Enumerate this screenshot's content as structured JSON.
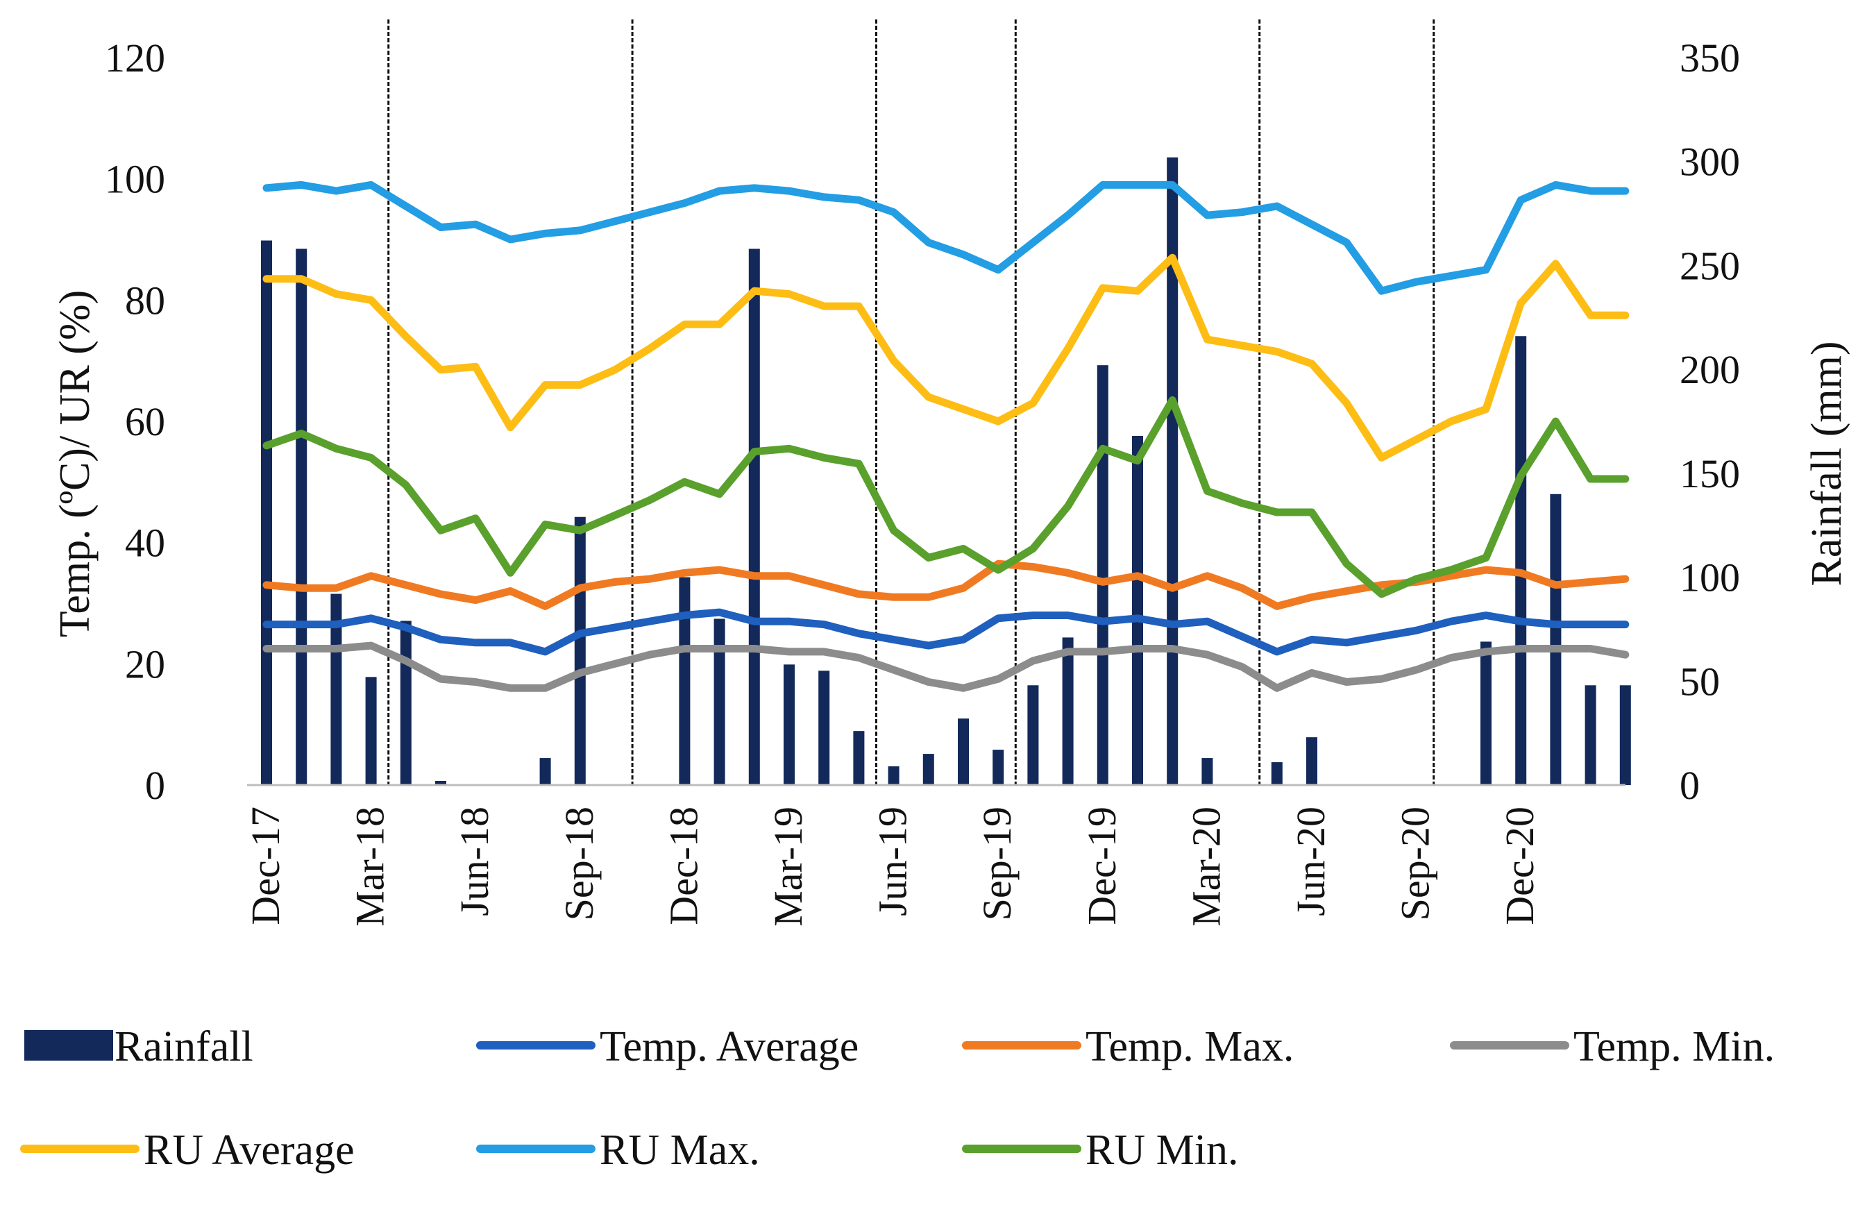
{
  "chart_data": {
    "type": "bar+line",
    "title": "",
    "ylabel_left": "Temp. (ºC)/ UR (%)",
    "ylabel_right": "Rainfall (mm)",
    "ylim_left": [
      0,
      120
    ],
    "ylim_right": [
      0,
      350
    ],
    "yticks_left": [
      "0",
      "20",
      "40",
      "60",
      "80",
      "100",
      "120"
    ],
    "yticks_right": [
      "0",
      "50",
      "100",
      "150",
      "200",
      "250",
      "300",
      "350"
    ],
    "months": [
      "Dec-17",
      "Jan-18",
      "Feb-18",
      "Mar-18",
      "Apr-18",
      "May-18",
      "Jun-18",
      "Jul-18",
      "Aug-18",
      "Sep-18",
      "Oct-18",
      "Nov-18",
      "Dec-18",
      "Jan-19",
      "Feb-19",
      "Mar-19",
      "Apr-19",
      "May-19",
      "Jun-19",
      "Jul-19",
      "Aug-19",
      "Sep-19",
      "Oct-19",
      "Nov-19",
      "Dec-19",
      "Jan-20",
      "Feb-20",
      "Mar-20",
      "Apr-20",
      "May-20",
      "Jun-20",
      "Jul-20",
      "Aug-20",
      "Sep-20",
      "Oct-20",
      "Nov-20",
      "Dec-20",
      "Jan-21",
      "Feb-21",
      "Mar-21"
    ],
    "xtick_labels": [
      "Dec-17",
      "Mar-18",
      "Jun-18",
      "Sep-18",
      "Dec-18",
      "Mar-19",
      "Jun-19",
      "Sep-19",
      "Dec-19",
      "Mar-20",
      "Jun-20",
      "Sep-20",
      "Dec-20"
    ],
    "vertical_dividers_after_month_index": [
      3.5,
      10.5,
      17.5,
      21.5,
      28.5,
      33.5
    ],
    "bar_series": {
      "name": "Rainfall",
      "axis": "right",
      "color": "#12295a",
      "values": [
        262,
        258,
        92,
        52,
        79,
        2,
        0,
        0,
        13,
        129,
        0,
        0,
        100,
        80,
        258,
        58,
        55,
        26,
        9,
        15,
        32,
        17,
        48,
        71,
        202,
        168,
        302,
        13,
        0,
        11,
        23,
        0,
        0,
        0,
        0,
        69,
        216,
        140,
        48,
        48
      ]
    },
    "series": [
      {
        "name": "Temp. Average",
        "axis": "left",
        "color": "#1f5fbd",
        "values": [
          26.5,
          26.5,
          26.5,
          27.5,
          26,
          24,
          23.5,
          23.5,
          22,
          25,
          26,
          27,
          28,
          28.5,
          27,
          27,
          26.5,
          25,
          24,
          23,
          24,
          27.5,
          28,
          28,
          27,
          27.5,
          26.5,
          27,
          24.5,
          22,
          24,
          23.5,
          24.5,
          25.5,
          27,
          28,
          27,
          26.5,
          26.5,
          26.5
        ]
      },
      {
        "name": "Temp. Max.",
        "axis": "left",
        "color": "#f07a22",
        "values": [
          33,
          32.5,
          32.5,
          34.5,
          33,
          31.5,
          30.5,
          32,
          29.5,
          32.5,
          33.5,
          34,
          35,
          35.5,
          34.5,
          34.5,
          33,
          31.5,
          31,
          31,
          32.5,
          36.5,
          36,
          35,
          33.5,
          34.5,
          32.5,
          34.5,
          32.5,
          29.5,
          31,
          32,
          33,
          33.5,
          34.5,
          35.5,
          35,
          33,
          33.5,
          34
        ]
      },
      {
        "name": "Temp. Min.",
        "axis": "left",
        "color": "#8c8c8c",
        "values": [
          22.5,
          22.5,
          22.5,
          23,
          20.5,
          17.5,
          17,
          16,
          16,
          18.5,
          20,
          21.5,
          22.5,
          22.5,
          22.5,
          22,
          22,
          21,
          19,
          17,
          16,
          17.5,
          20.5,
          22,
          22,
          22.5,
          22.5,
          21.5,
          19.5,
          16,
          18.5,
          17,
          17.5,
          19,
          21,
          22,
          22.5,
          22.5,
          22.5,
          21.5
        ]
      },
      {
        "name": "RU Average",
        "axis": "left",
        "color": "#fdbd14",
        "values": [
          83.5,
          83.5,
          81,
          80,
          74,
          68.5,
          69,
          59,
          66,
          66,
          68.5,
          72,
          76,
          76,
          81.5,
          81,
          79,
          79,
          70,
          64,
          62,
          60,
          63,
          72,
          82,
          81.5,
          87,
          73.5,
          72.5,
          71.5,
          69.5,
          63,
          54,
          57,
          60,
          62,
          79.5,
          86,
          77.5,
          77.5
        ]
      },
      {
        "name": "RU Max.",
        "axis": "left",
        "color": "#239de3",
        "values": [
          98.5,
          99,
          98,
          99,
          95.5,
          92,
          92.5,
          90,
          91,
          91.5,
          93,
          94.5,
          96,
          98,
          98.5,
          98,
          97,
          96.5,
          94.5,
          89.5,
          87.5,
          85,
          89.5,
          94,
          99,
          99,
          99,
          94,
          94.5,
          95.5,
          92.5,
          89.5,
          81.5,
          83,
          84,
          85,
          96.5,
          99,
          98,
          98
        ]
      },
      {
        "name": "RU Min.",
        "axis": "left",
        "color": "#5aa02c",
        "values": [
          56,
          58,
          55.5,
          54,
          49.5,
          42,
          44,
          35,
          43,
          42,
          44.5,
          47,
          50,
          48,
          55,
          55.5,
          54,
          53,
          42,
          37.5,
          39,
          35.5,
          39,
          46,
          55.5,
          53.5,
          63.5,
          48.5,
          46.5,
          45,
          45,
          36.5,
          31.5,
          34,
          35.5,
          37.5,
          51,
          60,
          50.5,
          50.5
        ]
      }
    ],
    "legend": {
      "placement": "bottom",
      "entries": [
        {
          "label": "Rainfall",
          "kind": "bar",
          "color": "#12295a"
        },
        {
          "label": "Temp. Average",
          "kind": "line",
          "color": "#1f5fbd"
        },
        {
          "label": "Temp. Max.",
          "kind": "line",
          "color": "#f07a22"
        },
        {
          "label": "Temp. Min.",
          "kind": "line",
          "color": "#8c8c8c"
        },
        {
          "label": "RU Average",
          "kind": "line",
          "color": "#fdbd14"
        },
        {
          "label": "RU Max.",
          "kind": "line",
          "color": "#239de3"
        },
        {
          "label": "RU Min.",
          "kind": "line",
          "color": "#5aa02c"
        }
      ]
    },
    "grid": false
  }
}
